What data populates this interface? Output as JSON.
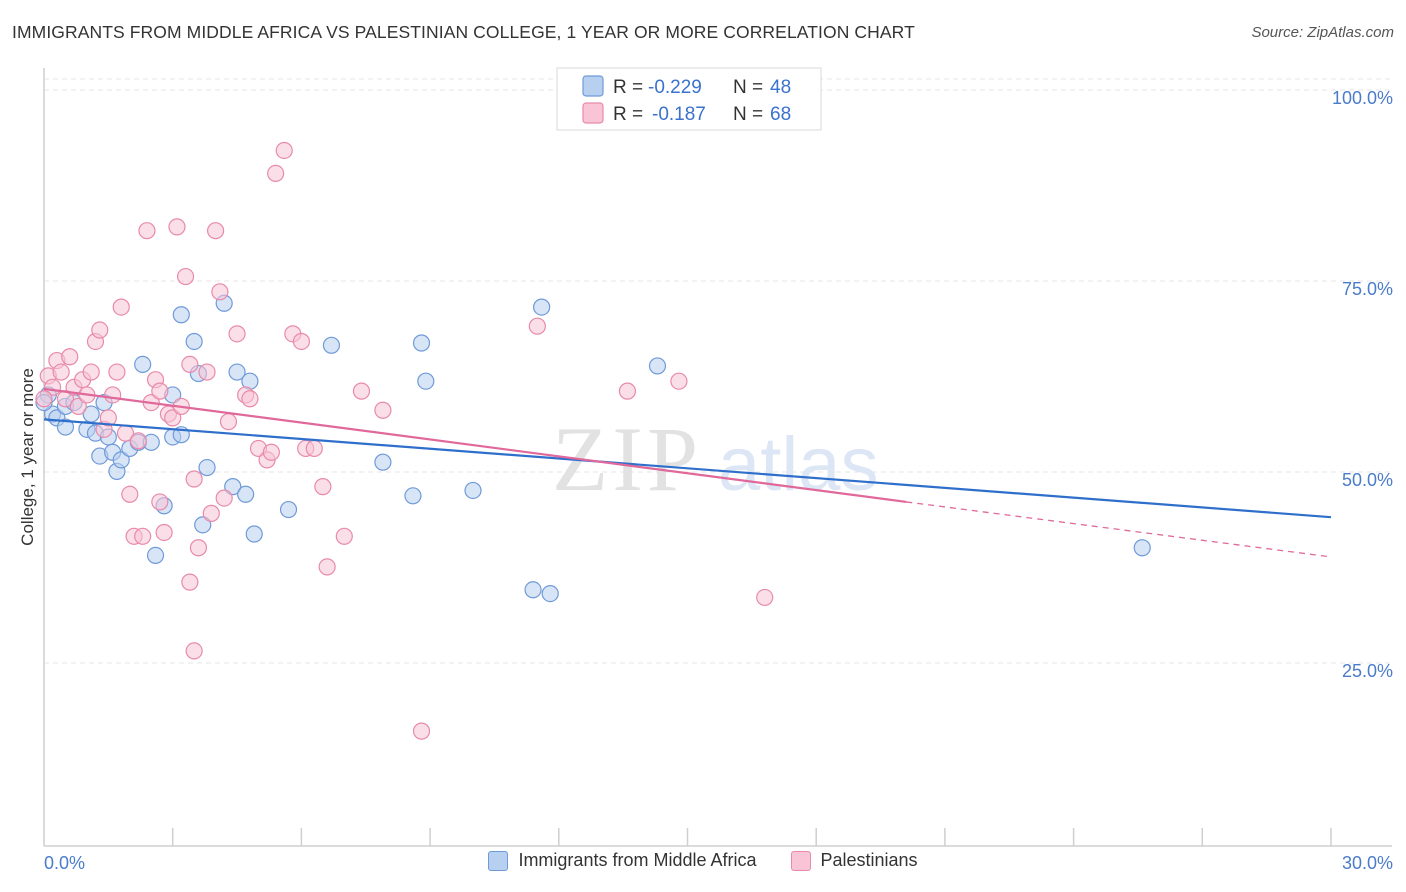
{
  "chart_data": {
    "type": "scatter",
    "title": "IMMIGRANTS FROM MIDDLE AFRICA VS PALESTINIAN COLLEGE, 1 YEAR OR MORE CORRELATION CHART",
    "source": "Source: ZipAtlas.com",
    "xlabel": "",
    "ylabel": "College, 1 year or more",
    "xlim": [
      0,
      30
    ],
    "ylim": [
      2,
      103
    ],
    "x_ticks": [
      {
        "v": 0,
        "label": "0.0%"
      },
      {
        "v": 30,
        "label": "30.0%"
      }
    ],
    "y_ticks": [
      {
        "v": 25,
        "label": "25.0%"
      },
      {
        "v": 50,
        "label": "50.0%"
      },
      {
        "v": 75,
        "label": "75.0%"
      },
      {
        "v": 100,
        "label": "100.0%"
      }
    ],
    "watermark": {
      "zip": "ZIP",
      "atlas": "atlas"
    },
    "legend_stats": [
      {
        "r_label": "R =",
        "r_value": "-0.229",
        "n_label": "N =",
        "n_value": "48"
      },
      {
        "r_label": "R =",
        "r_value": "-0.187",
        "n_label": "N =",
        "n_value": "68"
      }
    ],
    "series": [
      {
        "name": "Immigrants from Middle Africa",
        "fill": "#b8d0f0",
        "stroke": "#6f9ad8",
        "line_color": "#2f6fcc",
        "trend": {
          "x0": 0,
          "y0": 57.8,
          "x1": 30,
          "y1": 45.0
        },
        "points": [
          [
            0.1,
            61.0
          ],
          [
            0.2,
            58.5
          ],
          [
            0.3,
            58.0
          ],
          [
            0.5,
            56.8
          ],
          [
            0.5,
            59.5
          ],
          [
            0.7,
            60.0
          ],
          [
            1.0,
            56.5
          ],
          [
            1.1,
            58.5
          ],
          [
            1.2,
            56.0
          ],
          [
            1.3,
            53.0
          ],
          [
            1.4,
            60.0
          ],
          [
            1.5,
            55.5
          ],
          [
            1.6,
            53.5
          ],
          [
            1.7,
            51.0
          ],
          [
            1.8,
            52.5
          ],
          [
            2.0,
            54.0
          ],
          [
            2.2,
            54.8
          ],
          [
            2.3,
            65.0
          ],
          [
            2.5,
            54.8
          ],
          [
            2.6,
            40.0
          ],
          [
            2.8,
            46.5
          ],
          [
            3.0,
            55.5
          ],
          [
            3.0,
            61.0
          ],
          [
            3.2,
            55.8
          ],
          [
            3.2,
            71.5
          ],
          [
            3.5,
            68.0
          ],
          [
            3.6,
            63.8
          ],
          [
            3.7,
            44.0
          ],
          [
            3.8,
            51.5
          ],
          [
            4.2,
            73.0
          ],
          [
            4.4,
            49.0
          ],
          [
            4.5,
            64.0
          ],
          [
            4.7,
            48.0
          ],
          [
            4.8,
            62.8
          ],
          [
            4.9,
            42.8
          ],
          [
            5.7,
            46.0
          ],
          [
            6.7,
            67.5
          ],
          [
            7.9,
            52.2
          ],
          [
            8.8,
            67.8
          ],
          [
            8.9,
            62.8
          ],
          [
            8.6,
            47.8
          ],
          [
            10.0,
            48.5
          ],
          [
            11.4,
            35.5
          ],
          [
            11.6,
            72.5
          ],
          [
            11.8,
            35.0
          ],
          [
            14.3,
            64.8
          ],
          [
            25.6,
            41.0
          ],
          [
            0.0,
            60.0
          ]
        ]
      },
      {
        "name": "Palestinians",
        "fill": "#f8c4d6",
        "stroke": "#e88aaa",
        "line_color": "#e0689a",
        "trend": {
          "x0": 0,
          "y0": 61.8,
          "x1": 20.1,
          "y1": 47.0
        },
        "trend_dashed": {
          "x0": 20.1,
          "y0": 47.0,
          "x1": 30,
          "y1": 39.8
        },
        "points": [
          [
            0.1,
            63.5
          ],
          [
            0.2,
            62.0
          ],
          [
            0.3,
            65.5
          ],
          [
            0.4,
            64.0
          ],
          [
            0.5,
            60.5
          ],
          [
            0.6,
            66.0
          ],
          [
            0.7,
            62.0
          ],
          [
            0.8,
            59.5
          ],
          [
            0.9,
            63.0
          ],
          [
            1.0,
            61.0
          ],
          [
            1.1,
            64.0
          ],
          [
            1.2,
            68.0
          ],
          [
            1.3,
            69.5
          ],
          [
            1.4,
            56.5
          ],
          [
            1.5,
            58.0
          ],
          [
            1.6,
            61.0
          ],
          [
            1.7,
            64.0
          ],
          [
            1.8,
            72.5
          ],
          [
            1.9,
            56.0
          ],
          [
            2.0,
            48.0
          ],
          [
            2.1,
            42.5
          ],
          [
            2.2,
            55.0
          ],
          [
            2.3,
            42.5
          ],
          [
            2.4,
            82.5
          ],
          [
            2.5,
            60.0
          ],
          [
            2.6,
            63.0
          ],
          [
            2.7,
            61.5
          ],
          [
            2.7,
            47.0
          ],
          [
            2.8,
            43.0
          ],
          [
            2.9,
            58.5
          ],
          [
            3.0,
            58.0
          ],
          [
            3.1,
            83.0
          ],
          [
            3.2,
            59.5
          ],
          [
            3.3,
            76.5
          ],
          [
            3.4,
            65.0
          ],
          [
            3.4,
            36.5
          ],
          [
            3.5,
            50.0
          ],
          [
            3.6,
            41.0
          ],
          [
            3.8,
            64.0
          ],
          [
            3.9,
            45.5
          ],
          [
            4.0,
            82.5
          ],
          [
            4.1,
            74.5
          ],
          [
            4.2,
            47.5
          ],
          [
            4.3,
            57.5
          ],
          [
            4.5,
            69.0
          ],
          [
            4.7,
            61.0
          ],
          [
            4.8,
            60.5
          ],
          [
            5.0,
            54.0
          ],
          [
            5.2,
            52.5
          ],
          [
            5.3,
            53.5
          ],
          [
            5.4,
            90.0
          ],
          [
            5.6,
            93.0
          ],
          [
            5.8,
            69.0
          ],
          [
            6.0,
            68.0
          ],
          [
            6.1,
            54.0
          ],
          [
            6.3,
            54.0
          ],
          [
            6.5,
            49.0
          ],
          [
            6.6,
            38.5
          ],
          [
            7.0,
            42.5
          ],
          [
            7.4,
            61.5
          ],
          [
            7.9,
            59.0
          ],
          [
            8.8,
            17.0
          ],
          [
            11.5,
            70.0
          ],
          [
            13.6,
            61.5
          ],
          [
            14.8,
            62.8
          ],
          [
            16.8,
            34.5
          ],
          [
            3.5,
            27.5
          ],
          [
            0.0,
            60.5
          ]
        ]
      }
    ]
  }
}
